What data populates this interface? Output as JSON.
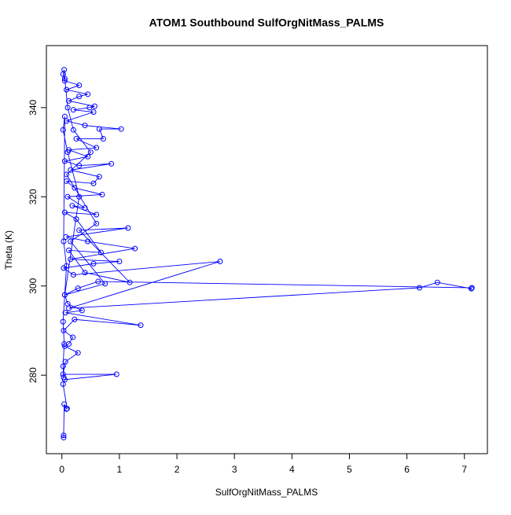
{
  "chart_data": {
    "type": "line",
    "markers": "open-circle",
    "title": "ATOM1 Southbound SulfOrgNitMass_PALMS",
    "xlabel": "SulfOrgNitMass_PALMS",
    "ylabel": "Theta (K)",
    "color": "#0000ff",
    "xlim": [
      -0.27,
      7.4
    ],
    "ylim": [
      262.4,
      353.9
    ],
    "xticks": [
      0,
      1,
      2,
      3,
      4,
      5,
      6,
      7
    ],
    "yticks": [
      280,
      300,
      320,
      340
    ],
    "x": [
      0.03,
      0.03,
      0.04,
      0.08,
      0.09,
      0.02,
      0.05,
      0.95,
      0.02,
      0.06,
      0.28,
      0.05,
      0.12,
      0.19,
      0.03,
      0.22,
      1.37,
      0.06,
      0.35,
      0.1,
      0.05,
      0.28,
      0.63,
      7.13,
      7.12,
      6.53,
      6.22,
      0.12,
      2.75,
      0.2,
      0.03,
      0.55,
      1.0,
      0.15,
      1.27,
      0.45,
      0.07,
      1.15,
      0.3,
      1.18,
      0.4,
      0.12,
      0.68,
      0.25,
      0.05,
      0.6,
      0.18,
      0.4,
      0.1,
      0.7,
      0.22,
      0.08,
      0.55,
      0.65,
      0.15,
      0.86,
      0.3,
      0.05,
      0.45,
      0.12,
      0.6,
      0.25,
      0.72,
      0.65,
      1.03,
      0.4,
      0.08,
      0.55,
      0.2,
      0.48,
      0.57,
      0.12,
      0.3,
      0.45,
      0.08,
      0.3,
      0.05,
      0.02,
      0.04,
      0.05,
      0.1,
      0.2,
      0.5,
      0.08,
      0.6,
      0.15,
      0.75,
      0.05,
      0.3,
      0.1,
      0.02,
      0.05,
      0.03,
      0.08,
      0.02,
      0.04,
      0.02,
      0.03
    ],
    "values": [
      266.0,
      266.5,
      273.5,
      272.4,
      272.5,
      278.0,
      279.0,
      280.2,
      280.2,
      283.0,
      285.0,
      286.5,
      287.0,
      288.5,
      290.0,
      292.5,
      291.2,
      294.0,
      294.5,
      296.0,
      298.0,
      299.5,
      301.0,
      299.6,
      299.4,
      300.8,
      299.6,
      295.0,
      305.5,
      302.5,
      304.0,
      305.0,
      305.5,
      306.0,
      308.4,
      310.0,
      311.0,
      313.0,
      312.5,
      300.8,
      303.0,
      308.0,
      307.5,
      315.0,
      316.5,
      316.0,
      318.0,
      317.5,
      320.0,
      320.5,
      322.0,
      323.5,
      323.0,
      324.5,
      326.0,
      327.4,
      327.0,
      328.0,
      329.0,
      330.5,
      331.0,
      333.0,
      333.0,
      335.2,
      335.2,
      336.0,
      337.0,
      339.0,
      339.5,
      340.0,
      340.3,
      341.5,
      342.5,
      343.0,
      344.0,
      345.0,
      346.0,
      347.5,
      348.5,
      346.5,
      340.0,
      335.0,
      330.0,
      325.0,
      314.0,
      310.0,
      300.5,
      298.0,
      320.0,
      330.0,
      335.0,
      338.0,
      310.0,
      304.5,
      292.0,
      287.0,
      282.0,
      279.5
    ]
  }
}
